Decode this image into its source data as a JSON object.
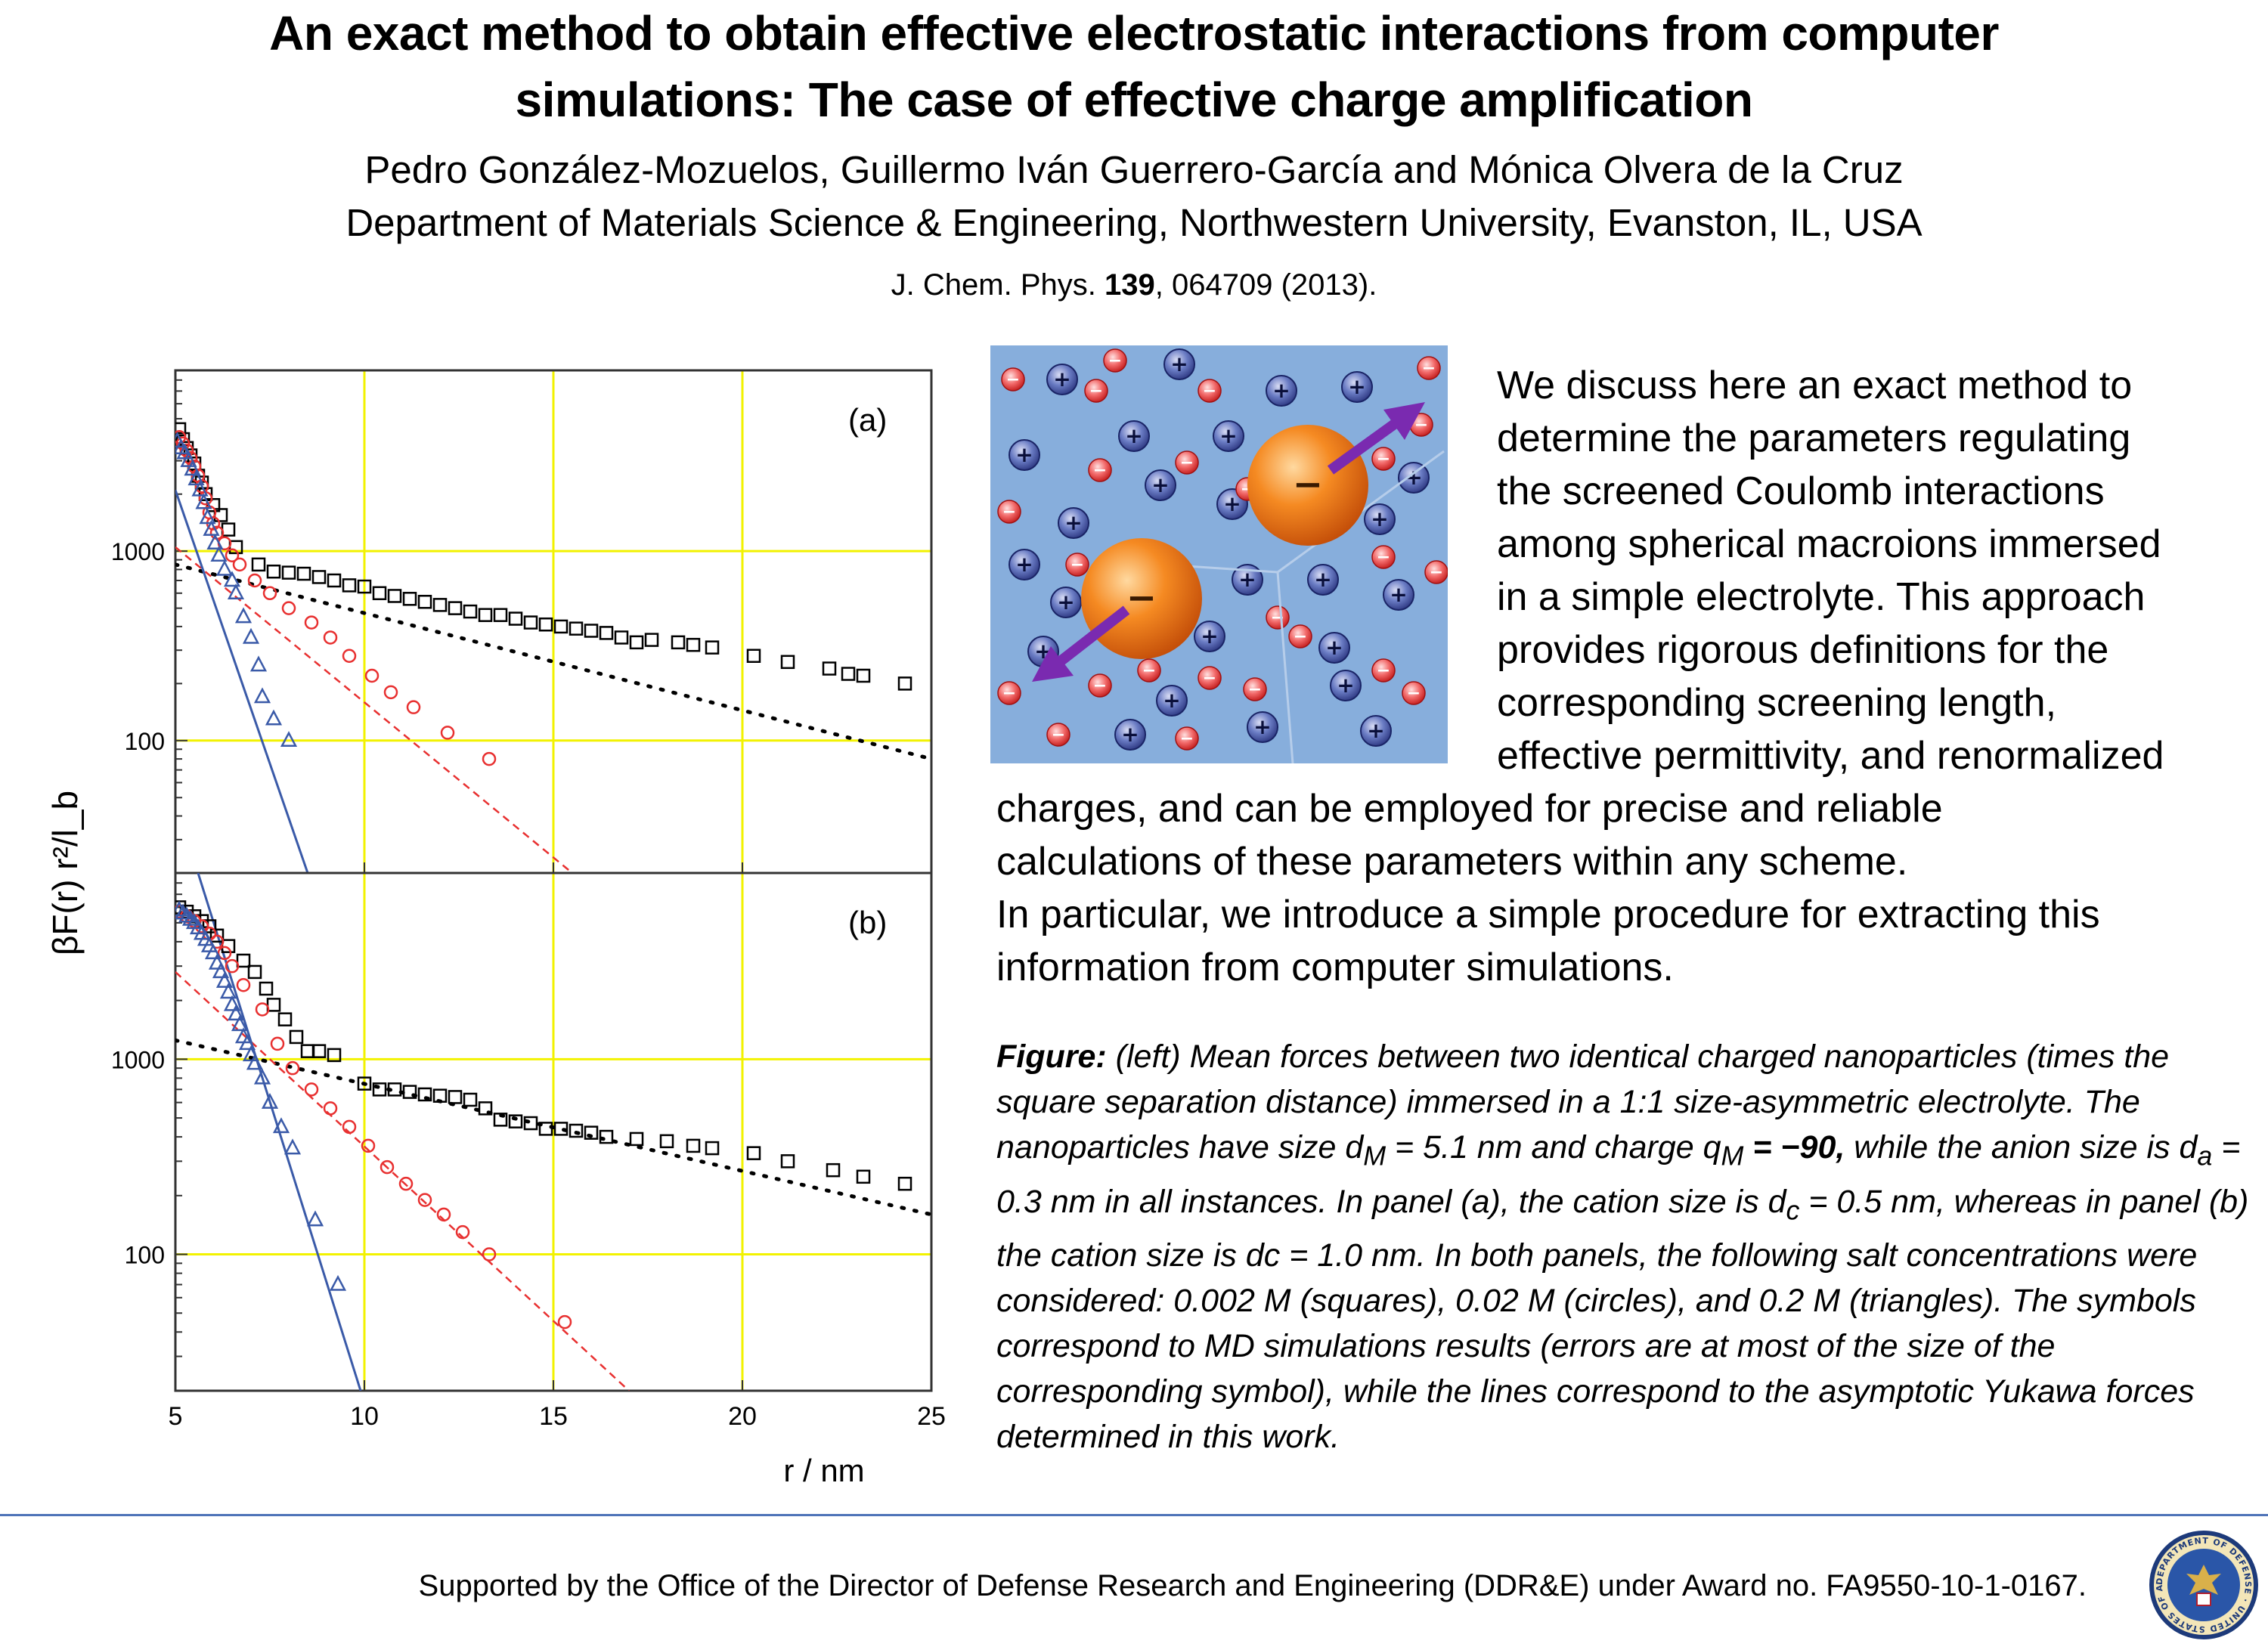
{
  "header": {
    "title_line1": "An exact method to obtain effective electrostatic interactions from computer",
    "title_line2": "simulations: The case of effective charge amplification",
    "authors": "Pedro González-Mozuelos, Guillermo Iván Guerrero-García and Mónica Olvera de la Cruz",
    "affiliation": "Department of Materials Science & Engineering, Northwestern University, Evanston, IL, USA",
    "citation_journal": "J. Chem. Phys.",
    "citation_volume": "139",
    "citation_rest": ", 064709 (2013)."
  },
  "abstract": {
    "lines_right": [
      "We discuss here an exact method to",
      "determine the parameters regulating",
      "the screened Coulomb interactions",
      "among spherical macroions immersed",
      "in a simple electrolyte. This approach",
      "provides rigorous definitions for the",
      "corresponding screening length,",
      "effective permittivity, and renormalized"
    ],
    "lines_full": [
      "charges, and can be employed for precise and reliable",
      "calculations of these parameters within any scheme.",
      "In particular, we introduce a simple procedure for extracting this",
      "information from computer simulations."
    ]
  },
  "caption": {
    "label": "Figure:",
    "t1": " (left) Mean forces between two identical charged nanoparticles (times the square separation distance) immersed in a 1:1 size-asymmetric electrolyte. The nanoparticles have size d",
    "s1": "M",
    "t2": " = 5.1 nm and charge q",
    "s2": "M",
    "t3": " ",
    "bold_value": "= −90,",
    "t4": " while the anion size is d",
    "s3": "a",
    "t5": " = 0.3 nm in all instances. In panel (a), the cation size is d",
    "s4": "c",
    "t6": " = 0.5 nm, whereas in panel (b) the cation size is dc = 1.0 nm. In both panels, the following salt concentrations were considered: 0.002 M (squares), 0.02 M (circles), and 0.2 M (triangles). The symbols correspond to MD simulations results (errors are at most of the size of the corresponding symbol), while the lines correspond to the  asymptotic Yukawa forces determined in this work."
  },
  "footer": {
    "support": "Supported by the Office of the Director of Defense Research and Engineering (DDR&E) under Award no. FA9550-10-1-0167.",
    "seal_text": "DEPARTMENT OF DEFENSE · UNITED STATES OF AMERICA"
  },
  "illustration": {
    "background": "#87aedc",
    "macroion_color": "#f07a1c",
    "cation_symbol": "+",
    "anion_symbol": "−",
    "macroion_symbol": "−"
  },
  "chart_data": [
    {
      "type": "scatter",
      "panel_label": "(a)",
      "xlabel": "r / nm",
      "ylabel": "βF(r) r²/l_b",
      "xlim": [
        5,
        25
      ],
      "ylim": [
        20,
        9000
      ],
      "yscale": "log",
      "x_ticks": [
        5,
        10,
        15,
        20,
        25
      ],
      "y_ticks": [
        100,
        1000
      ],
      "grid": true,
      "grid_color": "#f2f200",
      "series": [
        {
          "marker": "square",
          "color": "#000000",
          "x": [
            5.1,
            5.2,
            5.3,
            5.4,
            5.5,
            5.6,
            5.7,
            5.8,
            6.0,
            6.2,
            6.4,
            6.6,
            7.2,
            7.6,
            8.0,
            8.4,
            8.8,
            9.2,
            9.6,
            10.0,
            10.4,
            10.8,
            11.2,
            11.6,
            12.0,
            12.4,
            12.8,
            13.2,
            13.6,
            14.0,
            14.4,
            14.8,
            15.2,
            15.6,
            16.0,
            16.4,
            16.8,
            17.2,
            17.6,
            18.3,
            18.7,
            19.2,
            20.3,
            21.2,
            22.3,
            22.8,
            23.2,
            24.3
          ],
          "y": [
            4400,
            3900,
            3500,
            3200,
            2900,
            2500,
            2300,
            2000,
            1750,
            1550,
            1300,
            1050,
            850,
            780,
            770,
            760,
            730,
            700,
            660,
            650,
            600,
            580,
            560,
            540,
            520,
            500,
            480,
            460,
            460,
            440,
            420,
            410,
            400,
            390,
            380,
            370,
            350,
            330,
            340,
            330,
            320,
            310,
            280,
            260,
            240,
            225,
            220,
            200
          ]
        },
        {
          "marker": "circle",
          "color": "#e83030",
          "x": [
            5.1,
            5.2,
            5.3,
            5.4,
            5.5,
            5.6,
            5.7,
            5.8,
            5.9,
            6.0,
            6.1,
            6.3,
            6.5,
            6.7,
            7.1,
            7.5,
            8.0,
            8.6,
            9.1,
            9.6,
            10.2,
            10.7,
            11.3,
            12.2,
            13.3
          ],
          "y": [
            4000,
            3700,
            3400,
            3100,
            2800,
            2500,
            2200,
            1900,
            1600,
            1400,
            1250,
            1100,
            950,
            850,
            700,
            600,
            500,
            420,
            350,
            280,
            220,
            180,
            150,
            110,
            80
          ]
        },
        {
          "marker": "triangle",
          "color": "#3a5aa8",
          "x": [
            5.05,
            5.15,
            5.25,
            5.35,
            5.45,
            5.55,
            5.65,
            5.75,
            5.85,
            5.95,
            6.05,
            6.15,
            6.3,
            6.5,
            6.6,
            6.8,
            7.0,
            7.2,
            7.3,
            7.6,
            8.0
          ],
          "y": [
            3800,
            3500,
            3300,
            3000,
            2700,
            2400,
            2100,
            1800,
            1500,
            1300,
            1100,
            950,
            800,
            700,
            600,
            450,
            350,
            250,
            170,
            130,
            100
          ]
        }
      ],
      "fit_lines": [
        {
          "style": "dotted",
          "color": "#000000",
          "x": [
            5,
            25
          ],
          "y": [
            850,
            80
          ]
        },
        {
          "style": "dashed",
          "color": "#e83030",
          "x": [
            5,
            15.5
          ],
          "y": [
            1050,
            20
          ]
        },
        {
          "style": "solid",
          "color": "#3a5aa8",
          "x": [
            5,
            8.5
          ],
          "y": [
            2100,
            20
          ]
        }
      ]
    },
    {
      "type": "scatter",
      "panel_label": "(b)",
      "xlabel": "r / nm",
      "ylabel": "βF(r) r²/l_b",
      "xlim": [
        5,
        25
      ],
      "ylim": [
        20,
        9000
      ],
      "yscale": "log",
      "x_ticks": [
        5,
        10,
        15,
        20,
        25
      ],
      "y_ticks": [
        100,
        1000
      ],
      "grid": true,
      "grid_color": "#f2f200",
      "series": [
        {
          "marker": "square",
          "color": "#000000",
          "x": [
            5.1,
            5.3,
            5.5,
            5.7,
            5.9,
            6.1,
            6.4,
            6.8,
            7.1,
            7.4,
            7.6,
            7.9,
            8.2,
            8.5,
            8.8,
            9.2,
            10.0,
            10.4,
            10.8,
            11.2,
            11.6,
            12.0,
            12.4,
            12.8,
            13.2,
            13.6,
            14.0,
            14.4,
            14.8,
            15.2,
            15.6,
            16.0,
            16.4,
            17.2,
            18.0,
            18.7,
            19.2,
            20.3,
            21.2,
            22.4,
            23.2,
            24.3
          ],
          "y": [
            6000,
            5700,
            5400,
            5100,
            4800,
            4300,
            3800,
            3200,
            2800,
            2300,
            1900,
            1600,
            1300,
            1100,
            1100,
            1050,
            750,
            700,
            700,
            680,
            660,
            650,
            640,
            620,
            560,
            490,
            480,
            470,
            440,
            440,
            430,
            420,
            400,
            390,
            380,
            360,
            350,
            330,
            300,
            270,
            250,
            230
          ]
        },
        {
          "marker": "circle",
          "color": "#e83030",
          "x": [
            5.1,
            5.3,
            5.5,
            5.7,
            5.9,
            6.1,
            6.3,
            6.5,
            6.8,
            7.3,
            7.7,
            8.1,
            8.6,
            9.1,
            9.6,
            10.1,
            10.6,
            11.1,
            11.6,
            12.1,
            12.6,
            13.3,
            15.3
          ],
          "y": [
            5700,
            5400,
            5100,
            4800,
            4400,
            4000,
            3500,
            3000,
            2400,
            1800,
            1200,
            900,
            700,
            560,
            450,
            360,
            280,
            230,
            190,
            160,
            130,
            100,
            45
          ]
        },
        {
          "marker": "triangle",
          "color": "#3a5aa8",
          "x": [
            5.1,
            5.2,
            5.3,
            5.4,
            5.5,
            5.6,
            5.7,
            5.8,
            5.9,
            6.0,
            6.1,
            6.2,
            6.3,
            6.4,
            6.5,
            6.6,
            6.7,
            6.8,
            6.9,
            7.0,
            7.1,
            7.3,
            7.5,
            7.8,
            8.1,
            8.7,
            9.3
          ],
          "y": [
            5800,
            5600,
            5400,
            5200,
            5000,
            4700,
            4400,
            4100,
            3800,
            3500,
            3100,
            2800,
            2500,
            2200,
            1900,
            1700,
            1500,
            1300,
            1200,
            1050,
            950,
            800,
            600,
            450,
            350,
            150,
            70
          ]
        }
      ],
      "fit_lines": [
        {
          "style": "dotted",
          "color": "#000000",
          "x": [
            5,
            25
          ],
          "y": [
            1250,
            160
          ]
        },
        {
          "style": "dashed",
          "color": "#e83030",
          "x": [
            5,
            17
          ],
          "y": [
            2800,
            20
          ]
        },
        {
          "style": "solid",
          "color": "#3a5aa8",
          "x": [
            5.6,
            9.9
          ],
          "y": [
            9000,
            20
          ]
        }
      ]
    }
  ]
}
